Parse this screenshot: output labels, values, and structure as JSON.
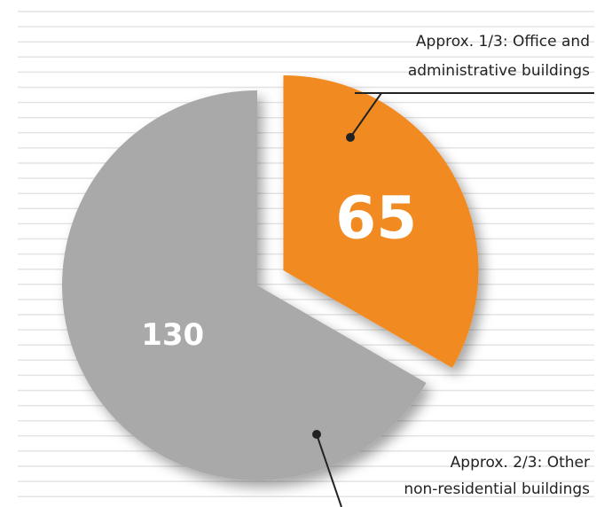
{
  "chart_data": {
    "type": "pie",
    "categories": [
      [
        "Approx. 1/3: Office and",
        "administrative buildings"
      ],
      [
        "Approx. 2/3: Other",
        "non-residential buildings"
      ]
    ],
    "values": [
      65,
      130
    ],
    "colors": [
      "#f28a22",
      "#a9a9aa"
    ]
  }
}
